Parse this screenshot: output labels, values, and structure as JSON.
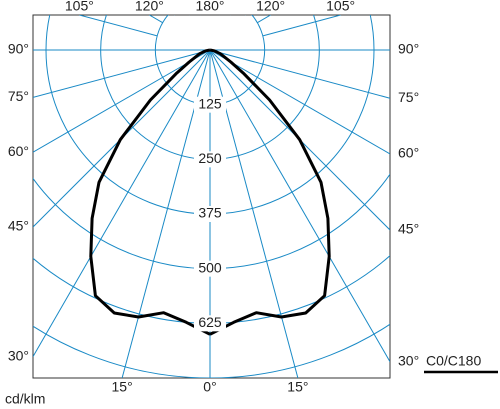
{
  "chart_data": {
    "type": "polar",
    "unit": "cd/klm",
    "legend": "C0/C180",
    "angles": [
      0,
      5,
      10,
      15,
      20,
      25,
      30,
      35,
      40,
      45,
      50,
      55,
      60,
      70,
      80,
      90
    ],
    "values": [
      650,
      625,
      610,
      632,
      640,
      620,
      545,
      470,
      395,
      290,
      178,
      95,
      55,
      25,
      10,
      0
    ],
    "color": "#000000",
    "grid_color": "#1a8ac6",
    "rlim": [
      0,
      750
    ],
    "rticks": [
      125,
      250,
      375,
      500,
      625
    ],
    "angle_grid": [
      0,
      15,
      30,
      45,
      60,
      75,
      90,
      105,
      120,
      135,
      150,
      165,
      180
    ],
    "angle_ticks": [
      {
        "value": 0,
        "label": "0°"
      },
      {
        "value": 15,
        "label": "15°"
      },
      {
        "value": 30,
        "label": "30°"
      },
      {
        "value": 45,
        "label": "45°"
      },
      {
        "value": 60,
        "label": "60°"
      },
      {
        "value": 75,
        "label": "75°"
      },
      {
        "value": 90,
        "label": "90°"
      },
      {
        "value": 105,
        "label": "105°"
      },
      {
        "value": 120,
        "label": "120°"
      },
      {
        "value": 180,
        "label": "180°"
      }
    ]
  }
}
